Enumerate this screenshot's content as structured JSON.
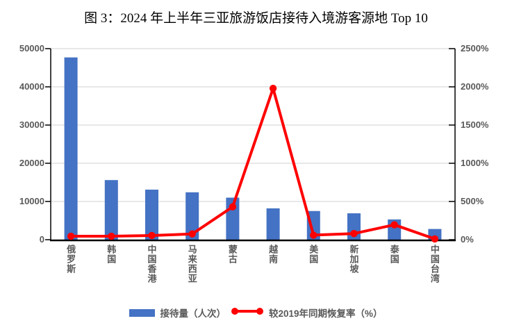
{
  "title": "图 3：2024 年上半年三亚旅游饭店接待入境游客源地 Top 10",
  "colors": {
    "bar": "#4472C4",
    "line": "#FF0000",
    "axis_text": "#595959",
    "gridline": "#D9D9D9",
    "axis_line": "#000000"
  },
  "chart_data": {
    "type": "combo-bar-line",
    "title": "图 3：2024 年上半年三亚旅游饭店接待入境游客源地 Top 10",
    "categories": [
      "俄罗斯",
      "韩国",
      "中国香港",
      "马来西亚",
      "蒙古",
      "越南",
      "美国",
      "新加坡",
      "泰国",
      "中国台湾"
    ],
    "series": [
      {
        "name": "接待量（人次）",
        "type": "bar",
        "axis": "left",
        "values": [
          47700,
          15600,
          13100,
          12400,
          11000,
          8200,
          7500,
          6900,
          5300,
          2800
        ]
      },
      {
        "name": "较2019年同期恢复率（%）",
        "type": "line",
        "axis": "right",
        "values": [
          45,
          45,
          55,
          75,
          430,
          1980,
          60,
          80,
          195,
          10
        ]
      }
    ],
    "left_axis": {
      "min": 0,
      "max": 50000,
      "tick_labels": [
        "0",
        "10000",
        "20000",
        "30000",
        "40000",
        "50000"
      ]
    },
    "right_axis": {
      "min": 0,
      "max": 2500,
      "tick_labels": [
        "0%",
        "500%",
        "1000%",
        "1500%",
        "2000%",
        "2500%"
      ]
    },
    "grid": true,
    "legend_position": "bottom"
  }
}
